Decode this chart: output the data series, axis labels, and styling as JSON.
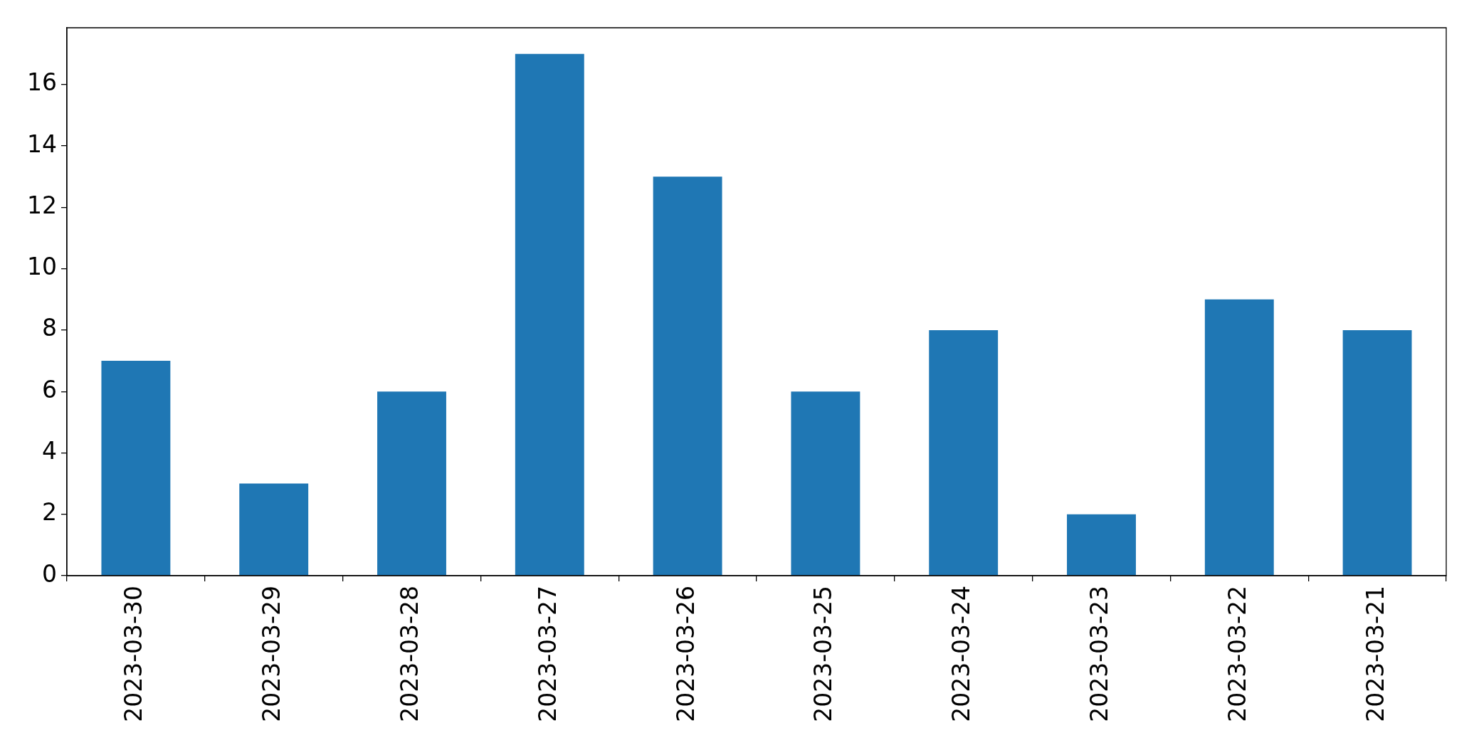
{
  "chart_data": {
    "type": "bar",
    "categories": [
      "2023-03-30",
      "2023-03-29",
      "2023-03-28",
      "2023-03-27",
      "2023-03-26",
      "2023-03-25",
      "2023-03-24",
      "2023-03-23",
      "2023-03-22",
      "2023-03-21"
    ],
    "values": [
      7,
      3,
      6,
      17,
      13,
      6,
      8,
      2,
      9,
      8
    ],
    "color": "#1f77b4",
    "ylim": [
      0,
      17.85
    ],
    "yticks": [
      0,
      2,
      4,
      6,
      8,
      10,
      12,
      14,
      16
    ],
    "grid": false,
    "legend": false
  }
}
